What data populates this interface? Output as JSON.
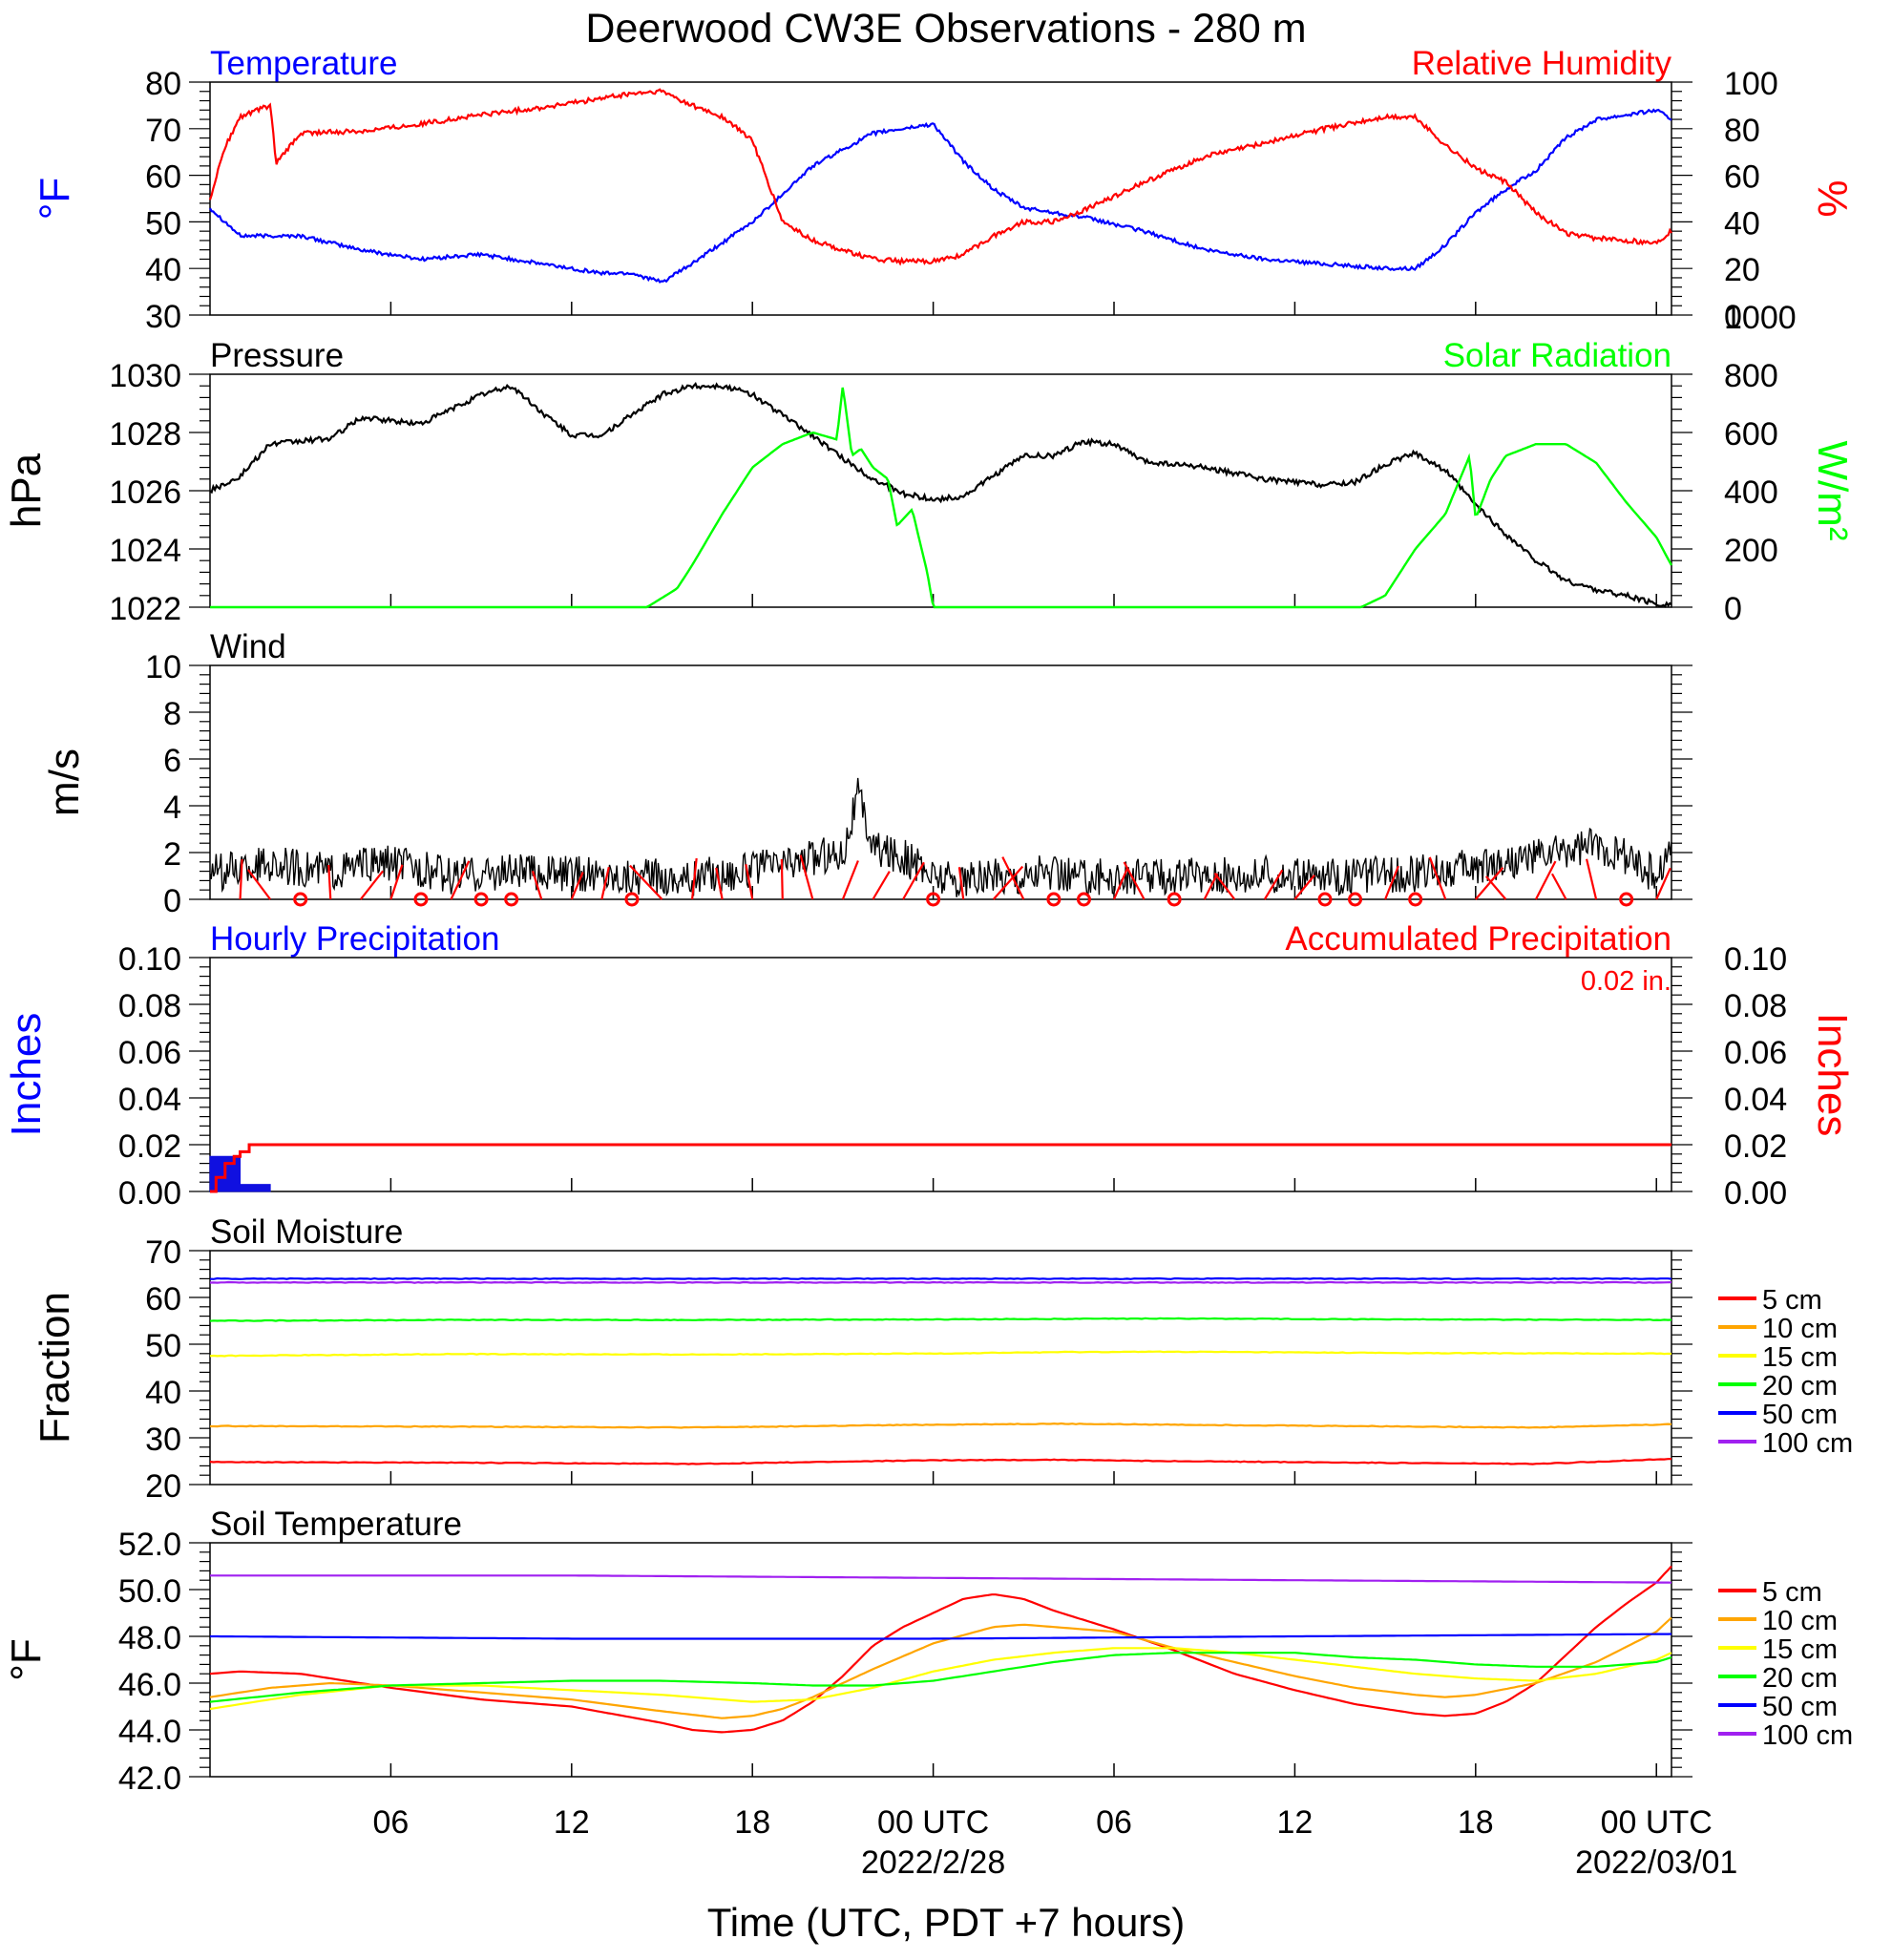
{
  "title": "Deerwood CW3E Observations - 280 m",
  "xlabel": "Time (UTC, PDT +7 hours)",
  "x_ticks": [
    {
      "hour": 6,
      "label": "06",
      "sub": ""
    },
    {
      "hour": 12,
      "label": "12",
      "sub": ""
    },
    {
      "hour": 18,
      "label": "18",
      "sub": ""
    },
    {
      "hour": 24,
      "label": "00 UTC",
      "sub": "2022/2/28"
    },
    {
      "hour": 30,
      "label": "06",
      "sub": ""
    },
    {
      "hour": 36,
      "label": "12",
      "sub": ""
    },
    {
      "hour": 42,
      "label": "18",
      "sub": ""
    },
    {
      "hour": 48,
      "label": "00 UTC",
      "sub": "2022/03/01"
    }
  ],
  "colors": {
    "red": "#ff0000",
    "orange": "#ffa500",
    "yellow": "#ffff00",
    "green": "#00ff00",
    "blue": "#0000ff",
    "purple": "#a020f0",
    "black": "#000000",
    "precip_blue": "#1010e0"
  },
  "panels": {
    "temp_rh": {
      "left_title": "Temperature",
      "right_title": "Relative Humidity",
      "left_unit": "°F",
      "right_unit": "%",
      "left_ticks": [
        "30",
        "40",
        "50",
        "60",
        "70",
        "80"
      ],
      "right_ticks": [
        "0",
        "20",
        "40",
        "60",
        "80",
        "100"
      ]
    },
    "pressure": {
      "left_title": "Pressure",
      "right_title": "Solar Radiation",
      "left_unit": "hPa",
      "right_unit": "W/m²",
      "left_ticks": [
        "1022",
        "1024",
        "1026",
        "1028",
        "1030"
      ],
      "right_ticks": [
        "0",
        "200",
        "400",
        "600",
        "800",
        "1000"
      ]
    },
    "wind": {
      "left_title": "Wind",
      "left_unit": "m/s",
      "left_ticks": [
        "0",
        "2",
        "4",
        "6",
        "8",
        "10"
      ]
    },
    "precip": {
      "left_title": "Hourly Precipitation",
      "right_title": "Accumulated Precipitation",
      "total_label": "0.02 in.",
      "left_unit": "Inches",
      "right_unit": "Inches",
      "left_ticks": [
        "0.00",
        "0.02",
        "0.04",
        "0.06",
        "0.08",
        "0.10"
      ],
      "right_ticks": [
        "0.00",
        "0.02",
        "0.04",
        "0.06",
        "0.08",
        "0.10"
      ]
    },
    "soil_moisture": {
      "left_title": "Soil Moisture",
      "left_unit": "Fraction",
      "left_ticks": [
        "20",
        "30",
        "40",
        "50",
        "60",
        "70"
      ],
      "legend": [
        "5 cm",
        "10 cm",
        "15 cm",
        "20 cm",
        "50 cm",
        "100 cm"
      ]
    },
    "soil_temp": {
      "left_title": "Soil Temperature",
      "left_unit": "°F",
      "left_ticks": [
        "42.0",
        "44.0",
        "46.0",
        "48.0",
        "50.0",
        "52.0"
      ],
      "legend": [
        "5 cm",
        "10 cm",
        "15 cm",
        "20 cm",
        "50 cm",
        "100 cm"
      ]
    }
  },
  "chart_data": [
    {
      "type": "line",
      "title": "Temperature / Relative Humidity",
      "x_range_hours": [
        0,
        48.5
      ],
      "ylim": [
        30,
        80
      ],
      "y2lim": [
        0,
        100
      ],
      "series": [
        {
          "name": "Temperature",
          "axis": "left",
          "color": "#0000ff",
          "x": [
            0,
            1,
            3,
            5,
            7,
            9,
            11,
            13,
            14,
            15,
            16,
            18,
            20,
            22,
            23,
            24,
            25,
            26,
            27,
            29,
            31,
            33,
            35,
            37,
            39,
            40,
            41,
            42,
            43,
            44,
            45,
            46,
            47,
            48,
            48.5
          ],
          "y": [
            53,
            47,
            47,
            44,
            42,
            43,
            41,
            39,
            39,
            37,
            41,
            50,
            62,
            69,
            70,
            71,
            63,
            57,
            53,
            51,
            48,
            44,
            42,
            41,
            40,
            40,
            45,
            52,
            57,
            61,
            68,
            72,
            73,
            74,
            72
          ]
        },
        {
          "name": "Relative Humidity",
          "axis": "right",
          "color": "#ff0000",
          "x": [
            0,
            0.5,
            1,
            2,
            2.2,
            3,
            5,
            7,
            9,
            11,
            13,
            14,
            15,
            16,
            17,
            18,
            19,
            20,
            21,
            22,
            23,
            24,
            25,
            26,
            27,
            28,
            29,
            31,
            33,
            35,
            37,
            39,
            40,
            41,
            42,
            43,
            44,
            45,
            46,
            47,
            48,
            48.5
          ],
          "y": [
            50,
            72,
            85,
            90,
            65,
            78,
            79,
            82,
            86,
            89,
            93,
            95,
            96,
            90,
            85,
            75,
            40,
            32,
            28,
            24,
            23,
            23,
            26,
            34,
            40,
            40,
            45,
            57,
            68,
            74,
            80,
            85,
            85,
            73,
            63,
            57,
            44,
            35,
            33,
            32,
            31,
            36
          ]
        }
      ]
    },
    {
      "type": "line",
      "title": "Pressure / Solar Radiation",
      "x_range_hours": [
        0,
        48.5
      ],
      "ylim": [
        1022,
        1030
      ],
      "y2lim": [
        0,
        1000
      ],
      "series": [
        {
          "name": "Pressure",
          "axis": "left",
          "color": "#000000",
          "x": [
            0,
            1,
            2,
            4,
            5,
            7,
            8,
            9,
            10,
            11,
            12,
            13,
            14,
            15,
            16,
            17,
            18,
            19,
            20,
            21,
            22,
            23,
            24,
            25,
            26,
            27,
            28,
            29,
            30,
            31,
            33,
            35,
            37,
            38,
            39,
            40,
            41,
            42,
            43,
            44,
            45,
            46,
            47,
            48,
            48.5
          ],
          "y": [
            1026,
            1026.5,
            1027.6,
            1027.8,
            1028.5,
            1028.3,
            1028.8,
            1029.3,
            1029.6,
            1028.7,
            1027.9,
            1027.9,
            1028.6,
            1029.3,
            1029.6,
            1029.6,
            1029.3,
            1028.6,
            1027.9,
            1027.1,
            1026.4,
            1025.9,
            1025.7,
            1025.8,
            1026.5,
            1027.2,
            1027.2,
            1027.7,
            1027.6,
            1027.0,
            1026.8,
            1026.4,
            1026.2,
            1026.3,
            1026.9,
            1027.3,
            1026.7,
            1025.5,
            1024.5,
            1023.6,
            1022.9,
            1022.6,
            1022.4,
            1022.1,
            1022.1
          ]
        },
        {
          "name": "Solar Radiation",
          "axis": "right",
          "color": "#00ff00",
          "x": [
            0,
            14.5,
            15.5,
            16,
            17,
            18,
            19,
            20,
            20.8,
            21,
            21.3,
            21.6,
            22,
            22.5,
            22.8,
            23.3,
            23.8,
            24,
            24.5,
            25,
            38.2,
            39,
            40,
            41,
            41.8,
            42,
            42.5,
            43,
            44,
            45,
            46,
            47,
            48,
            48.5
          ],
          "y": [
            0,
            0,
            80,
            180,
            400,
            600,
            700,
            750,
            720,
            950,
            650,
            680,
            600,
            550,
            350,
            420,
            150,
            0,
            0,
            0,
            0,
            50,
            250,
            400,
            650,
            380,
            550,
            650,
            700,
            700,
            620,
            450,
            300,
            180
          ]
        }
      ]
    },
    {
      "type": "line",
      "title": "Wind",
      "x_range_hours": [
        0,
        48.5
      ],
      "ylim": [
        0,
        10
      ],
      "series": [
        {
          "name": "Wind speed",
          "color": "#000000",
          "x": [
            0,
            2,
            4,
            6,
            8,
            10,
            12,
            14,
            16,
            18,
            19,
            20,
            21,
            21.5,
            22,
            23,
            24,
            25,
            26,
            28,
            30,
            32,
            34,
            36,
            38,
            40,
            42,
            44,
            46,
            47,
            48,
            48.5
          ],
          "y": [
            1.1,
            1.5,
            1.2,
            1.6,
            1.0,
            1.2,
            1.1,
            1.0,
            0.9,
            1.3,
            1.5,
            1.8,
            2.0,
            4.5,
            2.3,
            1.8,
            1.0,
            0.8,
            1.0,
            1.1,
            0.9,
            1.0,
            1.1,
            1.0,
            1.0,
            1.1,
            1.4,
            1.8,
            2.3,
            1.8,
            1.0,
            2.2
          ]
        }
      ],
      "calm_markers_hours": [
        3,
        7,
        9,
        10,
        14,
        24,
        28,
        29,
        32,
        37,
        38,
        40,
        47
      ]
    },
    {
      "type": "bar",
      "title": "Hourly / Accumulated Precipitation",
      "x_range_hours": [
        0,
        48.5
      ],
      "ylim": [
        0,
        0.1
      ],
      "y2lim": [
        0,
        0.1
      ],
      "hourly": {
        "name": "Hourly Precipitation",
        "x": [
          0,
          1
        ],
        "values": [
          0.015,
          0.003
        ]
      },
      "accumulated": {
        "name": "Accumulated Precipitation",
        "x": [
          0,
          0.2,
          0.5,
          0.8,
          1.0,
          1.3,
          48.5
        ],
        "y": [
          0,
          0.006,
          0.012,
          0.015,
          0.017,
          0.02,
          0.02
        ]
      }
    },
    {
      "type": "line",
      "title": "Soil Moisture",
      "x_range_hours": [
        0,
        48.5
      ],
      "ylim": [
        20,
        70
      ],
      "series": [
        {
          "name": "5 cm",
          "color": "#ff0000",
          "x": [
            0,
            8,
            16,
            24,
            28,
            32,
            40,
            44,
            48.5
          ],
          "y": [
            24.8,
            24.7,
            24.4,
            25.2,
            25.3,
            25.0,
            24.6,
            24.4,
            25.5
          ]
        },
        {
          "name": "10 cm",
          "color": "#ffa500",
          "x": [
            0,
            8,
            16,
            24,
            28,
            32,
            40,
            44,
            48.5
          ],
          "y": [
            32.5,
            32.4,
            32.2,
            32.8,
            33.0,
            32.8,
            32.4,
            32.2,
            32.9
          ]
        },
        {
          "name": "15 cm",
          "color": "#ffff00",
          "x": [
            0,
            8,
            16,
            24,
            28,
            32,
            40,
            48.5
          ],
          "y": [
            47.5,
            47.9,
            47.8,
            48.0,
            48.3,
            48.4,
            48.1,
            48.0
          ]
        },
        {
          "name": "20 cm",
          "color": "#00ff00",
          "x": [
            0,
            8,
            16,
            24,
            32,
            40,
            48.5
          ],
          "y": [
            55.0,
            55.2,
            55.2,
            55.3,
            55.5,
            55.3,
            55.2
          ]
        },
        {
          "name": "50 cm",
          "color": "#0000ff",
          "x": [
            0,
            24,
            48.5
          ],
          "y": [
            64.0,
            64.0,
            64.0
          ]
        },
        {
          "name": "100 cm",
          "color": "#a020f0",
          "x": [
            0,
            24,
            48.5
          ],
          "y": [
            63.2,
            63.2,
            63.2
          ]
        }
      ]
    },
    {
      "type": "line",
      "title": "Soil Temperature",
      "x_range_hours": [
        0,
        48.5
      ],
      "ylim": [
        42,
        52
      ],
      "series": [
        {
          "name": "5 cm",
          "color": "#ff0000",
          "x": [
            0,
            1,
            3,
            6,
            9,
            12,
            15,
            16,
            17,
            18,
            19,
            20,
            21,
            22,
            23,
            24,
            25,
            26,
            27,
            28,
            30,
            32,
            34,
            36,
            38,
            40,
            41,
            42,
            43,
            44,
            45,
            46,
            47,
            48,
            48.5
          ],
          "y": [
            46.4,
            46.5,
            46.4,
            45.8,
            45.3,
            45.0,
            44.3,
            44.0,
            43.9,
            44.0,
            44.4,
            45.2,
            46.3,
            47.6,
            48.4,
            49.0,
            49.6,
            49.8,
            49.6,
            49.1,
            48.3,
            47.4,
            46.4,
            45.7,
            45.1,
            44.7,
            44.6,
            44.7,
            45.2,
            46.0,
            47.2,
            48.4,
            49.4,
            50.3,
            51.0
          ]
        },
        {
          "name": "10 cm",
          "color": "#ffa500",
          "x": [
            0,
            2,
            4,
            6,
            9,
            12,
            15,
            17,
            18,
            19,
            20,
            22,
            24,
            26,
            27,
            28,
            30,
            32,
            34,
            36,
            38,
            40,
            41,
            42,
            44,
            46,
            48,
            48.5
          ],
          "y": [
            45.4,
            45.8,
            46.0,
            45.9,
            45.6,
            45.3,
            44.8,
            44.5,
            44.6,
            44.9,
            45.4,
            46.6,
            47.7,
            48.4,
            48.5,
            48.4,
            48.2,
            47.5,
            46.9,
            46.3,
            45.8,
            45.5,
            45.4,
            45.5,
            46.0,
            46.9,
            48.2,
            48.8
          ]
        },
        {
          "name": "15 cm",
          "color": "#ffff00",
          "x": [
            0,
            3,
            6,
            9,
            12,
            15,
            18,
            20,
            22,
            24,
            26,
            28,
            30,
            32,
            34,
            36,
            38,
            40,
            42,
            44,
            46,
            48,
            48.5
          ],
          "y": [
            44.9,
            45.5,
            45.9,
            45.9,
            45.7,
            45.5,
            45.2,
            45.3,
            45.8,
            46.5,
            47.0,
            47.3,
            47.5,
            47.5,
            47.3,
            47.0,
            46.7,
            46.4,
            46.2,
            46.1,
            46.4,
            47.0,
            47.3
          ]
        },
        {
          "name": "20 cm",
          "color": "#00ff00",
          "x": [
            0,
            3,
            6,
            9,
            12,
            15,
            18,
            20,
            22,
            24,
            26,
            28,
            30,
            32,
            34,
            36,
            38,
            40,
            42,
            44,
            46,
            48,
            48.5
          ],
          "y": [
            45.2,
            45.6,
            45.9,
            46.0,
            46.1,
            46.1,
            46.0,
            45.9,
            45.9,
            46.1,
            46.5,
            46.9,
            47.2,
            47.3,
            47.3,
            47.3,
            47.1,
            47.0,
            46.8,
            46.7,
            46.7,
            46.9,
            47.1
          ]
        },
        {
          "name": "50 cm",
          "color": "#0000ff",
          "x": [
            0,
            12,
            24,
            36,
            48.5
          ],
          "y": [
            48.0,
            47.9,
            47.9,
            48.0,
            48.1
          ]
        },
        {
          "name": "100 cm",
          "color": "#a020f0",
          "x": [
            0,
            12,
            24,
            36,
            48.5
          ],
          "y": [
            50.6,
            50.6,
            50.5,
            50.4,
            50.3
          ]
        }
      ]
    }
  ]
}
